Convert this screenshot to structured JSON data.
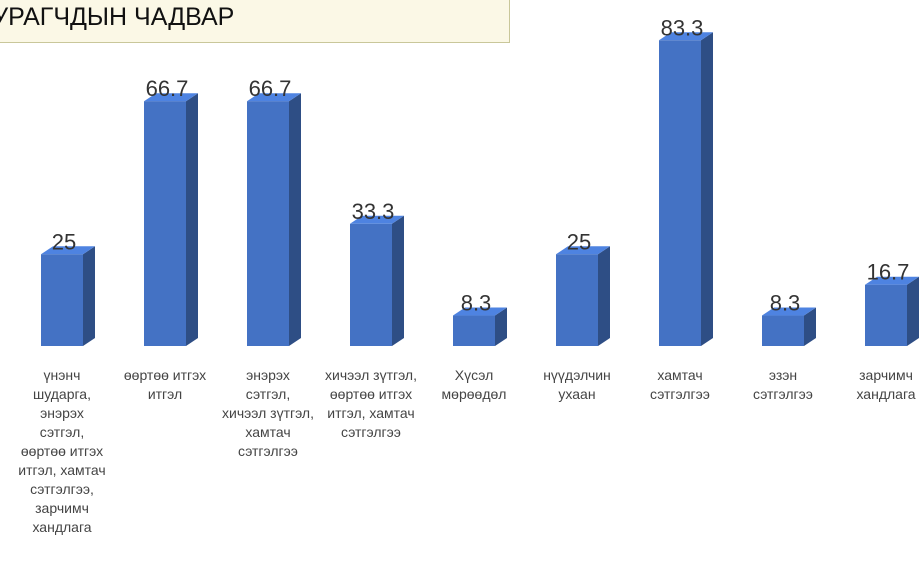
{
  "title": "СУРАГЧДЫН ЧАДВАР",
  "chart_data": {
    "type": "bar3d",
    "categories": [
      "үнэнч шударга, энэрэх сэтгэл, өөртөө итгэх итгэл, хамтач сэтгэлгээ, зарчимч хандлага",
      "өөртөө итгэх итгэл",
      "энэрэх сэтгэл, хичээл зүтгэл, хамтач сэтгэлгээ",
      "хичээл зүтгэл, өөртөө итгэх итгэл, хамтач сэтгэлгээ",
      "Хүсэл мөрөөдөл",
      "нүүдэлчин ухаан",
      "хамтач сэтгэлгээ",
      "эзэн сэтгэлгээ",
      "зарчимч хандлага"
    ],
    "values": [
      25,
      66.7,
      66.7,
      33.3,
      8.3,
      25,
      83.3,
      8.3,
      16.7
    ],
    "color": "#4472c4"
  }
}
